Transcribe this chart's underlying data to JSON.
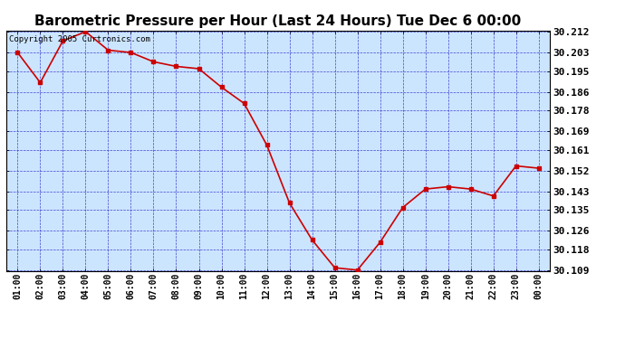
{
  "title": "Barometric Pressure per Hour (Last 24 Hours) Tue Dec 6 00:00",
  "copyright": "Copyright 2005 Curtronics.com",
  "x_labels": [
    "01:00",
    "02:00",
    "03:00",
    "04:00",
    "05:00",
    "06:00",
    "07:00",
    "08:00",
    "09:00",
    "10:00",
    "11:00",
    "12:00",
    "13:00",
    "14:00",
    "15:00",
    "16:00",
    "17:00",
    "18:00",
    "19:00",
    "20:00",
    "21:00",
    "22:00",
    "23:00",
    "00:00"
  ],
  "y_values": [
    30.203,
    30.19,
    30.208,
    30.212,
    30.204,
    30.203,
    30.199,
    30.197,
    30.196,
    30.188,
    30.181,
    30.163,
    30.138,
    30.122,
    30.11,
    30.109,
    30.121,
    30.136,
    30.144,
    30.145,
    30.144,
    30.141,
    30.154,
    30.153
  ],
  "line_color": "#cc0000",
  "marker_color": "#cc0000",
  "plot_bg_color": "#cce5ff",
  "outer_bg_color": "#ffffff",
  "grid_color": "#3333cc",
  "title_color": "#000000",
  "y_min": 30.109,
  "y_max": 30.212,
  "y_ticks": [
    30.109,
    30.118,
    30.126,
    30.135,
    30.143,
    30.152,
    30.161,
    30.169,
    30.178,
    30.186,
    30.195,
    30.203,
    30.212
  ],
  "title_fontsize": 11,
  "copyright_fontsize": 6.5,
  "tick_fontsize": 7,
  "ytick_fontsize": 8
}
